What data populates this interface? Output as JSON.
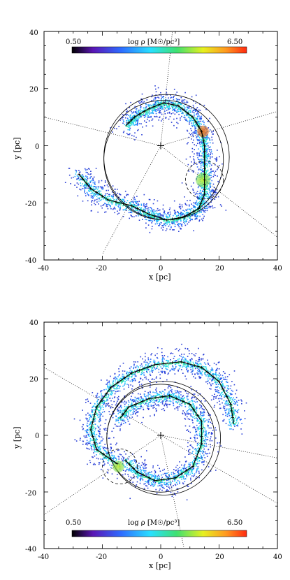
{
  "chart_data": [
    {
      "type": "scatter",
      "title": "",
      "xlabel": "x [pc]",
      "ylabel": "y [pc]",
      "xlim": [
        -40,
        40
      ],
      "ylim": [
        -40,
        40
      ],
      "xticks": [
        "-40",
        "-20",
        "0",
        "20",
        "40"
      ],
      "yticks": [
        "-40",
        "-20",
        "0",
        "20",
        "40"
      ],
      "colorbar": {
        "label": "log ρ [M☉/pc³]",
        "min_label": "0.50",
        "max_label": "6.50",
        "placement": "top"
      },
      "center_marker": [
        0,
        0
      ],
      "spine": [
        [
          -28,
          -10
        ],
        [
          -24,
          -15
        ],
        [
          -18,
          -19
        ],
        [
          -10,
          -21
        ],
        [
          -4,
          -24
        ],
        [
          2,
          -26
        ],
        [
          8,
          -25
        ],
        [
          13,
          -22
        ],
        [
          15,
          -17
        ],
        [
          15,
          -12
        ],
        [
          15,
          -6
        ],
        [
          15,
          0
        ],
        [
          14,
          5
        ],
        [
          11,
          10
        ],
        [
          6,
          14
        ],
        [
          1,
          15
        ],
        [
          -4,
          13
        ],
        [
          -9,
          10
        ],
        [
          -12,
          7
        ]
      ],
      "clumps": [
        {
          "x": 14.5,
          "y": 5,
          "r": 2,
          "color": "#e6772a"
        },
        {
          "x": 14.5,
          "y": -12,
          "r": 2.5,
          "color": "#98e030"
        }
      ],
      "circles": [
        {
          "cx": 1,
          "cy": -5,
          "r": 20.5,
          "style": "solid"
        },
        {
          "cx": 2,
          "cy": -4,
          "r": 21.5,
          "style": "solid"
        },
        {
          "cx": 15,
          "cy": -12,
          "r": 6.5,
          "style": "dashed"
        }
      ],
      "rays": [
        [
          4,
          40
        ],
        [
          40,
          12
        ],
        [
          40,
          -32
        ],
        [
          -20,
          -38
        ],
        [
          -40,
          10
        ]
      ]
    },
    {
      "type": "scatter",
      "title": "",
      "xlabel": "x [pc]",
      "ylabel": "y [pc]",
      "xlim": [
        -40,
        40
      ],
      "ylim": [
        -40,
        40
      ],
      "xticks": [
        "-40",
        "-20",
        "0",
        "20",
        "40"
      ],
      "yticks": [
        "-40",
        "-20",
        "0",
        "20",
        "40"
      ],
      "colorbar": {
        "label": "log ρ [M☉/pc³]",
        "min_label": "0.50",
        "max_label": "6.50",
        "placement": "bottom"
      },
      "center_marker": [
        0,
        0
      ],
      "spine_outer": [
        [
          -15,
          -10
        ],
        [
          -22,
          -5
        ],
        [
          -24,
          2
        ],
        [
          -22,
          10
        ],
        [
          -17,
          17
        ],
        [
          -10,
          22
        ],
        [
          -2,
          25
        ],
        [
          7,
          26
        ],
        [
          14,
          24
        ],
        [
          20,
          19
        ],
        [
          24,
          11
        ],
        [
          25,
          4
        ]
      ],
      "spine_inner": [
        [
          -12,
          -9
        ],
        [
          -8,
          -13
        ],
        [
          -2,
          -16
        ],
        [
          5,
          -15
        ],
        [
          11,
          -11
        ],
        [
          14,
          -3
        ],
        [
          14,
          5
        ],
        [
          10,
          11
        ],
        [
          3,
          14
        ],
        [
          -4,
          13
        ],
        [
          -11,
          10
        ],
        [
          -14,
          6
        ]
      ],
      "clumps": [
        {
          "x": -14.5,
          "y": -11,
          "r": 2,
          "color": "#a8e03a"
        }
      ],
      "circles": [
        {
          "cx": 0,
          "cy": -1,
          "r": 18.5,
          "style": "solid"
        },
        {
          "cx": 1,
          "cy": -1,
          "r": 19.5,
          "style": "solid"
        },
        {
          "cx": -14,
          "cy": -11,
          "r": 6,
          "style": "dashed"
        }
      ],
      "rays": [
        [
          -40,
          24
        ],
        [
          -40,
          -28
        ],
        [
          40,
          -24
        ],
        [
          40,
          -8
        ],
        [
          8,
          -40
        ]
      ]
    }
  ]
}
